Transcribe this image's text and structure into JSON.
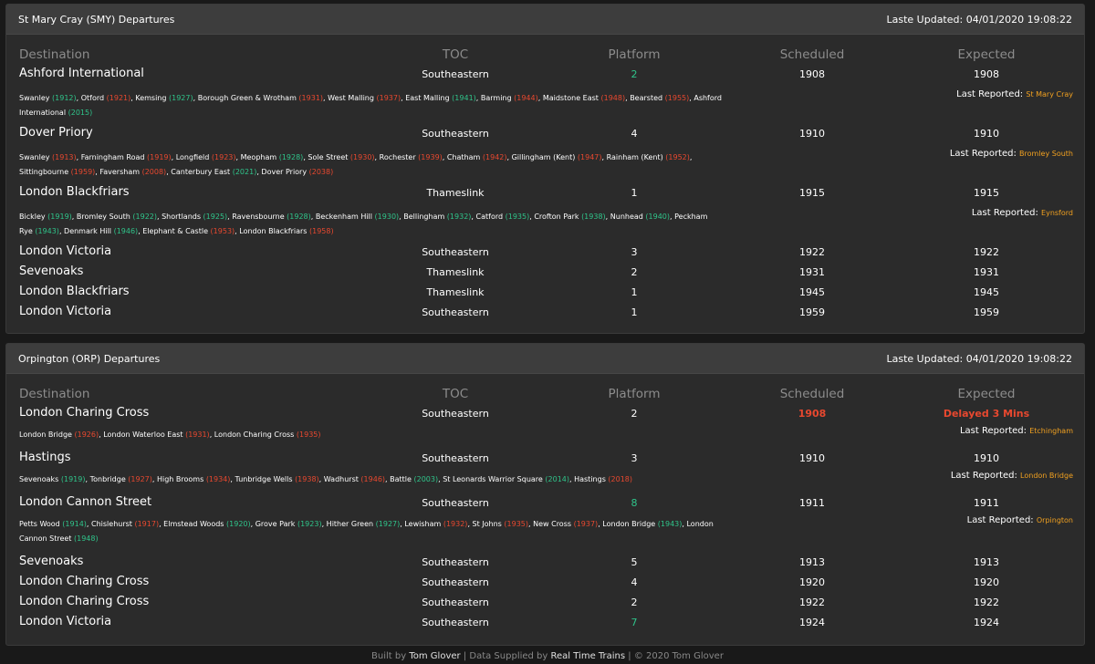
{
  "boards": [
    {
      "title": "St Mary Cray (SMY) Departures",
      "updated": "Laste Updated: 04/01/2020 19:08:22",
      "headers": {
        "destination": "Destination",
        "toc": "TOC",
        "platform": "Platform",
        "scheduled": "Scheduled",
        "expected": "Expected"
      },
      "services": [
        {
          "destination": "Ashford International",
          "toc": "Southeastern",
          "platform": "2",
          "platform_state": "green",
          "scheduled": "1908",
          "expected": "1908",
          "last_reported_label": "Last Reported:",
          "last_reported": "St Mary Cray",
          "calls": [
            [
              "Swanley",
              "1912",
              "green"
            ],
            [
              "Otford",
              "1921",
              "red"
            ],
            [
              "Kemsing",
              "1927",
              "green"
            ],
            [
              "Borough Green & Wrotham",
              "1931",
              "red"
            ],
            [
              "West Malling",
              "1937",
              "red"
            ],
            [
              "East Malling",
              "1941",
              "green"
            ],
            [
              "Barming",
              "1944",
              "red"
            ],
            [
              "Maidstone East",
              "1948",
              "red"
            ],
            [
              "Bearsted",
              "1955",
              "red"
            ],
            [
              "Ashford International",
              "2015",
              "green"
            ]
          ]
        },
        {
          "destination": "Dover Priory",
          "toc": "Southeastern",
          "platform": "4",
          "platform_state": "normal",
          "scheduled": "1910",
          "expected": "1910",
          "last_reported_label": "Last Reported:",
          "last_reported": "Bromley South",
          "calls": [
            [
              "Swanley",
              "1913",
              "red"
            ],
            [
              "Farningham Road",
              "1919",
              "red"
            ],
            [
              "Longfield",
              "1923",
              "red"
            ],
            [
              "Meopham",
              "1928",
              "green"
            ],
            [
              "Sole Street",
              "1930",
              "red"
            ],
            [
              "Rochester",
              "1939",
              "red"
            ],
            [
              "Chatham",
              "1942",
              "red"
            ],
            [
              "Gillingham (Kent)",
              "1947",
              "red"
            ],
            [
              "Rainham (Kent)",
              "1952",
              "red"
            ],
            [
              "Sittingbourne",
              "1959",
              "red"
            ],
            [
              "Faversham",
              "2008",
              "red"
            ],
            [
              "Canterbury East",
              "2021",
              "green"
            ],
            [
              "Dover Priory",
              "2038",
              "red"
            ]
          ]
        },
        {
          "destination": "London Blackfriars",
          "toc": "Thameslink",
          "platform": "1",
          "platform_state": "normal",
          "scheduled": "1915",
          "expected": "1915",
          "last_reported_label": "Last Reported:",
          "last_reported": "Eynsford",
          "calls": [
            [
              "Bickley",
              "1919",
              "green"
            ],
            [
              "Bromley South",
              "1922",
              "green"
            ],
            [
              "Shortlands",
              "1925",
              "green"
            ],
            [
              "Ravensbourne",
              "1928",
              "green"
            ],
            [
              "Beckenham Hill",
              "1930",
              "green"
            ],
            [
              "Bellingham",
              "1932",
              "green"
            ],
            [
              "Catford",
              "1935",
              "green"
            ],
            [
              "Crofton Park",
              "1938",
              "green"
            ],
            [
              "Nunhead",
              "1940",
              "green"
            ],
            [
              "Peckham Rye",
              "1943",
              "green"
            ],
            [
              "Denmark Hill",
              "1946",
              "green"
            ],
            [
              "Elephant & Castle",
              "1953",
              "red"
            ],
            [
              "London Blackfriars",
              "1958",
              "red"
            ]
          ]
        },
        {
          "destination": "London Victoria",
          "toc": "Southeastern",
          "platform": "3",
          "platform_state": "normal",
          "scheduled": "1922",
          "expected": "1922"
        },
        {
          "destination": "Sevenoaks",
          "toc": "Thameslink",
          "platform": "2",
          "platform_state": "normal",
          "scheduled": "1931",
          "expected": "1931"
        },
        {
          "destination": "London Blackfriars",
          "toc": "Thameslink",
          "platform": "1",
          "platform_state": "normal",
          "scheduled": "1945",
          "expected": "1945"
        },
        {
          "destination": "London Victoria",
          "toc": "Southeastern",
          "platform": "1",
          "platform_state": "normal",
          "scheduled": "1959",
          "expected": "1959"
        }
      ]
    },
    {
      "title": "Orpington (ORP) Departures",
      "updated": "Laste Updated: 04/01/2020 19:08:22",
      "headers": {
        "destination": "Destination",
        "toc": "TOC",
        "platform": "Platform",
        "scheduled": "Scheduled",
        "expected": "Expected"
      },
      "services": [
        {
          "destination": "London Charing Cross",
          "toc": "Southeastern",
          "platform": "2",
          "platform_state": "normal",
          "scheduled": "1908",
          "scheduled_state": "red",
          "expected": "Delayed 3 Mins",
          "expected_state": "red",
          "last_reported_label": "Last Reported:",
          "last_reported": "Etchingham",
          "calls": [
            [
              "London Bridge",
              "1926",
              "red"
            ],
            [
              "London Waterloo East",
              "1931",
              "red"
            ],
            [
              "London Charing Cross",
              "1935",
              "red"
            ]
          ]
        },
        {
          "destination": "Hastings",
          "toc": "Southeastern",
          "platform": "3",
          "platform_state": "normal",
          "scheduled": "1910",
          "expected": "1910",
          "last_reported_label": "Last Reported:",
          "last_reported": "London Bridge",
          "calls": [
            [
              "Sevenoaks",
              "1919",
              "green"
            ],
            [
              "Tonbridge",
              "1927",
              "red"
            ],
            [
              "High Brooms",
              "1934",
              "red"
            ],
            [
              "Tunbridge Wells",
              "1938",
              "red"
            ],
            [
              "Wadhurst",
              "1946",
              "red"
            ],
            [
              "Battle",
              "2003",
              "green"
            ],
            [
              "St Leonards Warrior Square",
              "2014",
              "green"
            ],
            [
              "Hastings",
              "2018",
              "red"
            ]
          ]
        },
        {
          "destination": "London Cannon Street",
          "toc": "Southeastern",
          "platform": "8",
          "platform_state": "green",
          "scheduled": "1911",
          "expected": "1911",
          "last_reported_label": "Last Reported:",
          "last_reported": "Orpington",
          "calls": [
            [
              "Petts Wood",
              "1914",
              "green"
            ],
            [
              "Chislehurst",
              "1917",
              "red"
            ],
            [
              "Elmstead Woods",
              "1920",
              "green"
            ],
            [
              "Grove Park",
              "1923",
              "green"
            ],
            [
              "Hither Green",
              "1927",
              "green"
            ],
            [
              "Lewisham",
              "1932",
              "red"
            ],
            [
              "St Johns",
              "1935",
              "red"
            ],
            [
              "New Cross",
              "1937",
              "red"
            ],
            [
              "London Bridge",
              "1943",
              "green"
            ],
            [
              "London Cannon Street",
              "1948",
              "green"
            ]
          ]
        },
        {
          "destination": "Sevenoaks",
          "toc": "Southeastern",
          "platform": "5",
          "platform_state": "normal",
          "scheduled": "1913",
          "expected": "1913"
        },
        {
          "destination": "London Charing Cross",
          "toc": "Southeastern",
          "platform": "4",
          "platform_state": "normal",
          "scheduled": "1920",
          "expected": "1920"
        },
        {
          "destination": "London Charing Cross",
          "toc": "Southeastern",
          "platform": "2",
          "platform_state": "normal",
          "scheduled": "1922",
          "expected": "1922"
        },
        {
          "destination": "London Victoria",
          "toc": "Southeastern",
          "platform": "7",
          "platform_state": "green",
          "scheduled": "1924",
          "expected": "1924"
        }
      ]
    }
  ],
  "footer": {
    "built_by_prefix": "Built by",
    "author_link": "Tom Glover",
    "data_prefix": "| Data Supplied by",
    "data_link": "Real Time Trains",
    "copyright": "| © 2020 Tom Glover"
  },
  "colors": {
    "on_time": "#2fc48a",
    "late": "#e8482f",
    "last_reported": "#f0a020",
    "background": "#191919",
    "panel": "#2b2b2b"
  }
}
